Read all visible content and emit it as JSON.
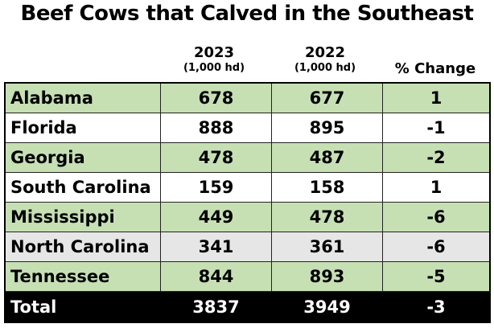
{
  "title": "Beef Cows that Calved in the Southeast",
  "colors": {
    "green": "#c6e0b4",
    "white": "#ffffff",
    "gray": "#e7e6e6",
    "total": "#000000"
  },
  "chart_data": {
    "type": "table",
    "title": "Beef Cows that Calved in the Southeast",
    "columns": [
      {
        "label": "2023",
        "unit": "(1,000 hd)"
      },
      {
        "label": "2022",
        "unit": "(1,000 hd)"
      },
      {
        "label": "% Change",
        "unit": ""
      }
    ],
    "rows": [
      {
        "state": "Alabama",
        "y2023": "678",
        "y2022": "677",
        "change": "1",
        "fill": "#c6e0b4"
      },
      {
        "state": "Florida",
        "y2023": "888",
        "y2022": "895",
        "change": "-1",
        "fill": "#ffffff"
      },
      {
        "state": "Georgia",
        "y2023": "478",
        "y2022": "487",
        "change": "-2",
        "fill": "#c6e0b4"
      },
      {
        "state": "South Carolina",
        "y2023": "159",
        "y2022": "158",
        "change": "1",
        "fill": "#ffffff"
      },
      {
        "state": "Mississippi",
        "y2023": "449",
        "y2022": "478",
        "change": "-6",
        "fill": "#c6e0b4"
      },
      {
        "state": "North Carolina",
        "y2023": "341",
        "y2022": "361",
        "change": "-6",
        "fill": "#e7e6e6"
      },
      {
        "state": "Tennessee",
        "y2023": "844",
        "y2022": "893",
        "change": "-5",
        "fill": "#c6e0b4"
      }
    ],
    "total": {
      "state": "Total",
      "y2023": "3837",
      "y2022": "3949",
      "change": "-3"
    }
  }
}
